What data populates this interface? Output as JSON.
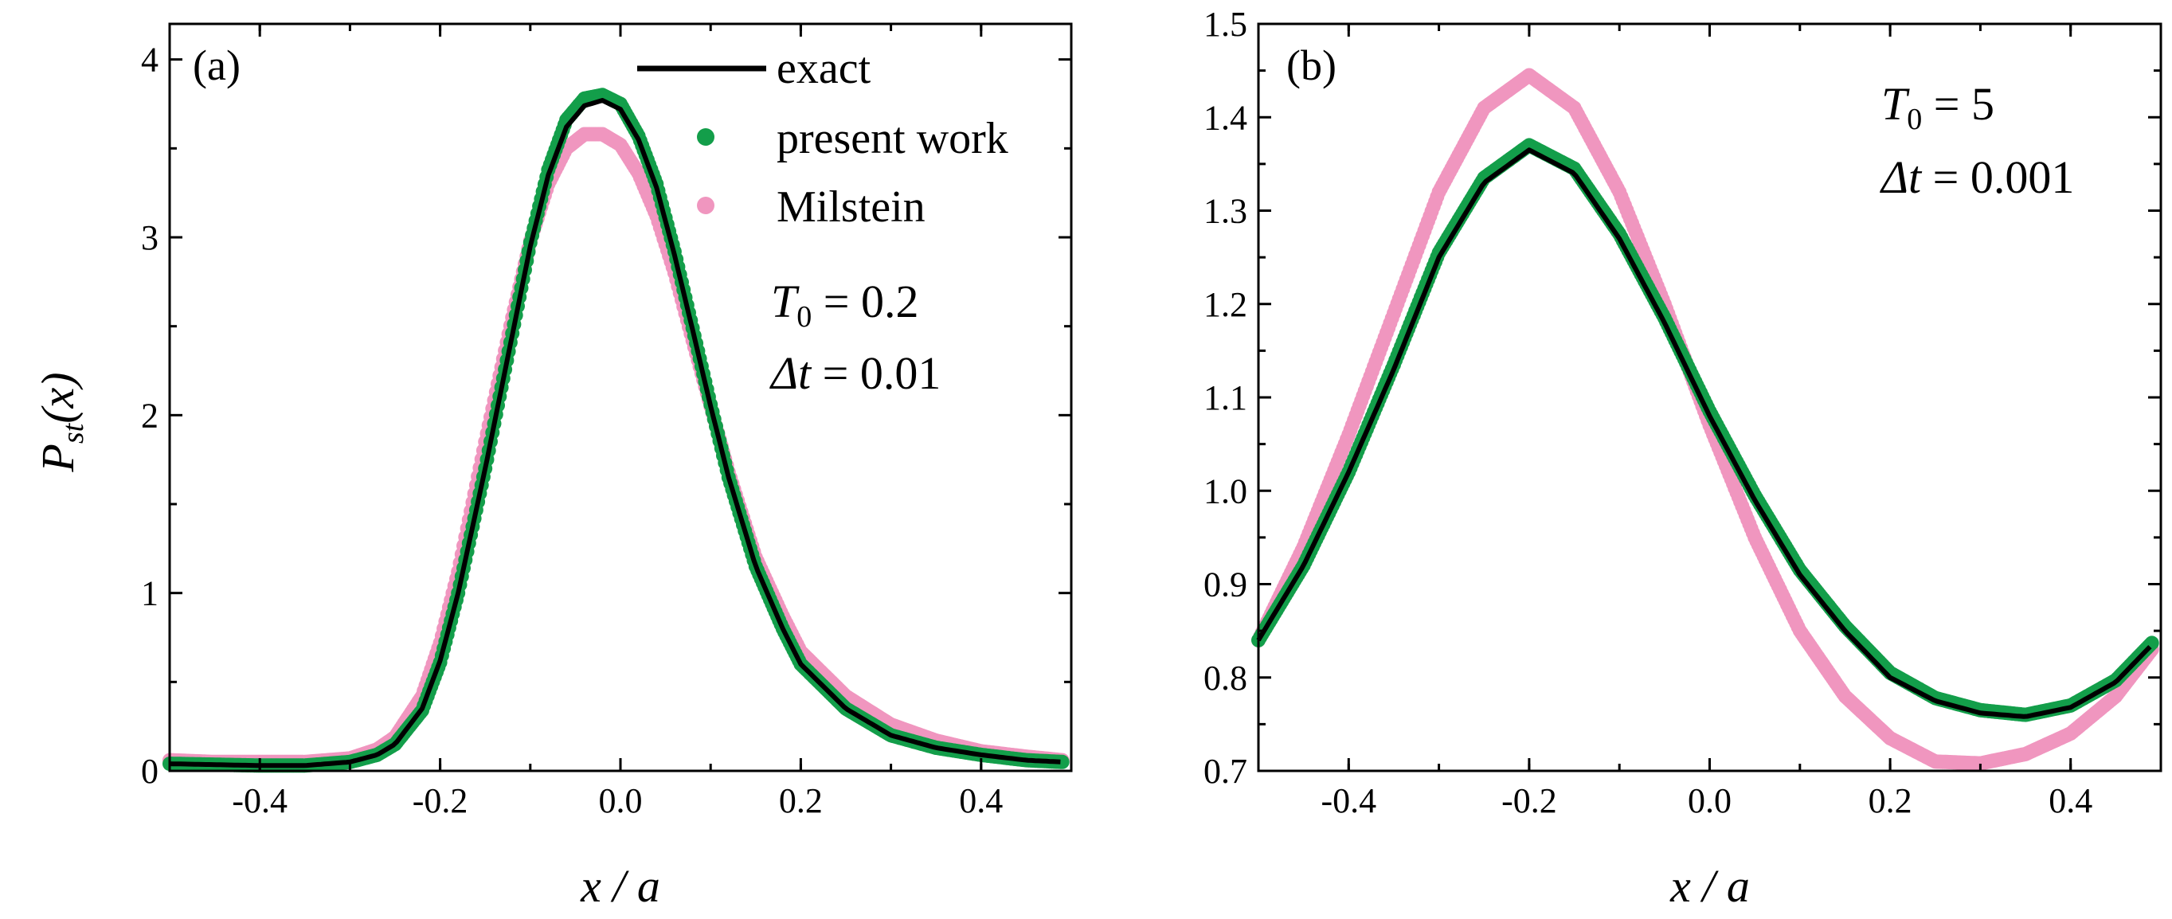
{
  "chart_data": [
    {
      "panel_label": "(a)",
      "type": "line",
      "xlabel": "x / a",
      "ylabel": "P_st(x)",
      "ylabel_parts": {
        "main": "P",
        "sub": "st",
        "arg": "(x)"
      },
      "xlim": [
        -0.5,
        0.5
      ],
      "ylim": [
        0,
        4.2
      ],
      "xticks": [
        -0.4,
        -0.2,
        0.0,
        0.2,
        0.4
      ],
      "xtick_labels": [
        "-0.4",
        "-0.2",
        "0.0",
        "0.2",
        "0.4"
      ],
      "yticks": [
        0,
        1,
        2,
        3,
        4
      ],
      "ytick_labels": [
        "0",
        "1",
        "2",
        "3",
        "4"
      ],
      "legend": [
        {
          "label": "exact",
          "style": "line"
        },
        {
          "label": "present work",
          "style": "markers"
        },
        {
          "label": "Milstein",
          "style": "markers"
        }
      ],
      "annotations": [
        {
          "symbol": "T",
          "sub": "0",
          "rest": " = 0.2"
        },
        {
          "symbol": "Δt",
          "sub": "",
          "rest": " = 0.01"
        }
      ],
      "x": [
        -0.5,
        -0.45,
        -0.4,
        -0.35,
        -0.3,
        -0.27,
        -0.25,
        -0.22,
        -0.2,
        -0.18,
        -0.15,
        -0.12,
        -0.1,
        -0.08,
        -0.06,
        -0.04,
        -0.02,
        0.0,
        0.02,
        0.04,
        0.06,
        0.08,
        0.1,
        0.12,
        0.15,
        0.18,
        0.2,
        0.25,
        0.3,
        0.35,
        0.4,
        0.45,
        0.49
      ],
      "series": [
        {
          "name": "exact",
          "color": "#000000",
          "values": [
            0.04,
            0.035,
            0.03,
            0.03,
            0.05,
            0.09,
            0.15,
            0.35,
            0.62,
            1.0,
            1.7,
            2.45,
            2.95,
            3.35,
            3.62,
            3.74,
            3.77,
            3.72,
            3.55,
            3.28,
            2.9,
            2.48,
            2.05,
            1.65,
            1.15,
            0.8,
            0.6,
            0.35,
            0.2,
            0.13,
            0.09,
            0.06,
            0.05
          ]
        },
        {
          "name": "present work",
          "color": "#139e4a",
          "values": [
            0.04,
            0.035,
            0.03,
            0.03,
            0.05,
            0.09,
            0.15,
            0.34,
            0.61,
            1.0,
            1.7,
            2.46,
            2.97,
            3.38,
            3.66,
            3.78,
            3.8,
            3.75,
            3.57,
            3.3,
            2.92,
            2.49,
            2.06,
            1.65,
            1.15,
            0.8,
            0.6,
            0.35,
            0.2,
            0.13,
            0.09,
            0.06,
            0.05
          ]
        },
        {
          "name": "Milstein",
          "color": "#f096bf",
          "values": [
            0.06,
            0.05,
            0.05,
            0.05,
            0.07,
            0.12,
            0.19,
            0.42,
            0.72,
            1.12,
            1.85,
            2.55,
            2.98,
            3.3,
            3.5,
            3.58,
            3.58,
            3.52,
            3.36,
            3.12,
            2.8,
            2.42,
            2.05,
            1.68,
            1.2,
            0.87,
            0.67,
            0.42,
            0.26,
            0.17,
            0.11,
            0.08,
            0.06
          ]
        }
      ]
    },
    {
      "panel_label": "(b)",
      "type": "line",
      "xlabel": "x / a",
      "ylabel": "",
      "xlim": [
        -0.5,
        0.5
      ],
      "ylim": [
        0.7,
        1.5
      ],
      "xticks": [
        -0.4,
        -0.2,
        0.0,
        0.2,
        0.4
      ],
      "xtick_labels": [
        "-0.4",
        "-0.2",
        "0.0",
        "0.2",
        "0.4"
      ],
      "yticks": [
        0.7,
        0.8,
        0.9,
        1.0,
        1.1,
        1.2,
        1.3,
        1.4,
        1.5
      ],
      "ytick_labels": [
        "0.7",
        "0.8",
        "0.9",
        "1.0",
        "1.1",
        "1.2",
        "1.3",
        "1.4",
        "1.5"
      ],
      "legend": [],
      "annotations": [
        {
          "symbol": "T",
          "sub": "0",
          "rest": " = 5"
        },
        {
          "symbol": "Δt",
          "sub": "",
          "rest": " = 0.001"
        }
      ],
      "x": [
        -0.5,
        -0.45,
        -0.4,
        -0.35,
        -0.3,
        -0.25,
        -0.2,
        -0.15,
        -0.1,
        -0.05,
        0.0,
        0.05,
        0.1,
        0.15,
        0.2,
        0.25,
        0.3,
        0.35,
        0.4,
        0.45,
        0.49
      ],
      "series": [
        {
          "name": "exact",
          "color": "#000000",
          "values": [
            0.84,
            0.92,
            1.02,
            1.13,
            1.25,
            1.33,
            1.365,
            1.34,
            1.27,
            1.18,
            1.08,
            0.99,
            0.91,
            0.85,
            0.8,
            0.775,
            0.762,
            0.758,
            0.768,
            0.795,
            0.835
          ]
        },
        {
          "name": "present work",
          "color": "#139e4a",
          "values": [
            0.84,
            0.92,
            1.02,
            1.135,
            1.255,
            1.335,
            1.37,
            1.345,
            1.275,
            1.185,
            1.085,
            0.995,
            0.915,
            0.855,
            0.805,
            0.778,
            0.765,
            0.76,
            0.77,
            0.797,
            0.837
          ]
        },
        {
          "name": "Milstein",
          "color": "#f096bf",
          "values": [
            0.84,
            0.94,
            1.06,
            1.19,
            1.32,
            1.41,
            1.445,
            1.41,
            1.32,
            1.2,
            1.07,
            0.95,
            0.85,
            0.78,
            0.735,
            0.71,
            0.708,
            0.718,
            0.74,
            0.78,
            0.83
          ]
        }
      ]
    }
  ]
}
